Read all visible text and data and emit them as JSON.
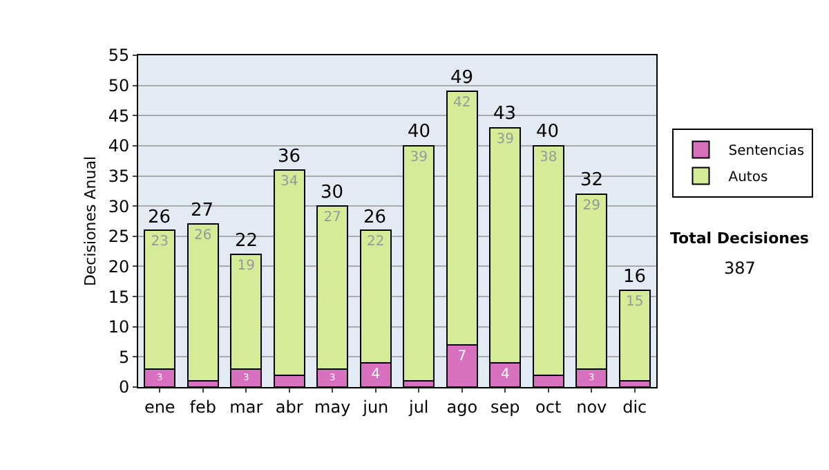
{
  "chart_data": {
    "type": "bar",
    "stacked": true,
    "ylabel": "Decisiones Anual",
    "categories": [
      "ene",
      "feb",
      "mar",
      "abr",
      "may",
      "jun",
      "jul",
      "ago",
      "sep",
      "oct",
      "nov",
      "dic"
    ],
    "series": [
      {
        "name": "Sentencias",
        "color": "#d870c0",
        "values": [
          3,
          1,
          3,
          2,
          3,
          4,
          1,
          7,
          4,
          2,
          3,
          1
        ],
        "value_labels": [
          "3",
          null,
          "3",
          null,
          "3",
          "4",
          null,
          "7",
          "4",
          null,
          "3",
          null
        ]
      },
      {
        "name": "Autos",
        "color": "#d4ec98",
        "values": [
          23,
          26,
          19,
          34,
          27,
          22,
          39,
          42,
          39,
          38,
          29,
          15
        ],
        "value_labels": [
          "23",
          "26",
          "19",
          "34",
          "27",
          "22",
          "39",
          "42",
          "39",
          "38",
          "29",
          "15"
        ]
      }
    ],
    "totals": [
      "26",
      "27",
      "22",
      "36",
      "30",
      "26",
      "40",
      "49",
      "43",
      "40",
      "32",
      "16"
    ],
    "ylim": [
      0,
      55
    ],
    "yticks": [
      0,
      5,
      10,
      15,
      20,
      25,
      30,
      35,
      40,
      45,
      50,
      55
    ],
    "grid": "y",
    "legend": "right",
    "annotations": [
      "Total Decisiones",
      "387"
    ]
  }
}
